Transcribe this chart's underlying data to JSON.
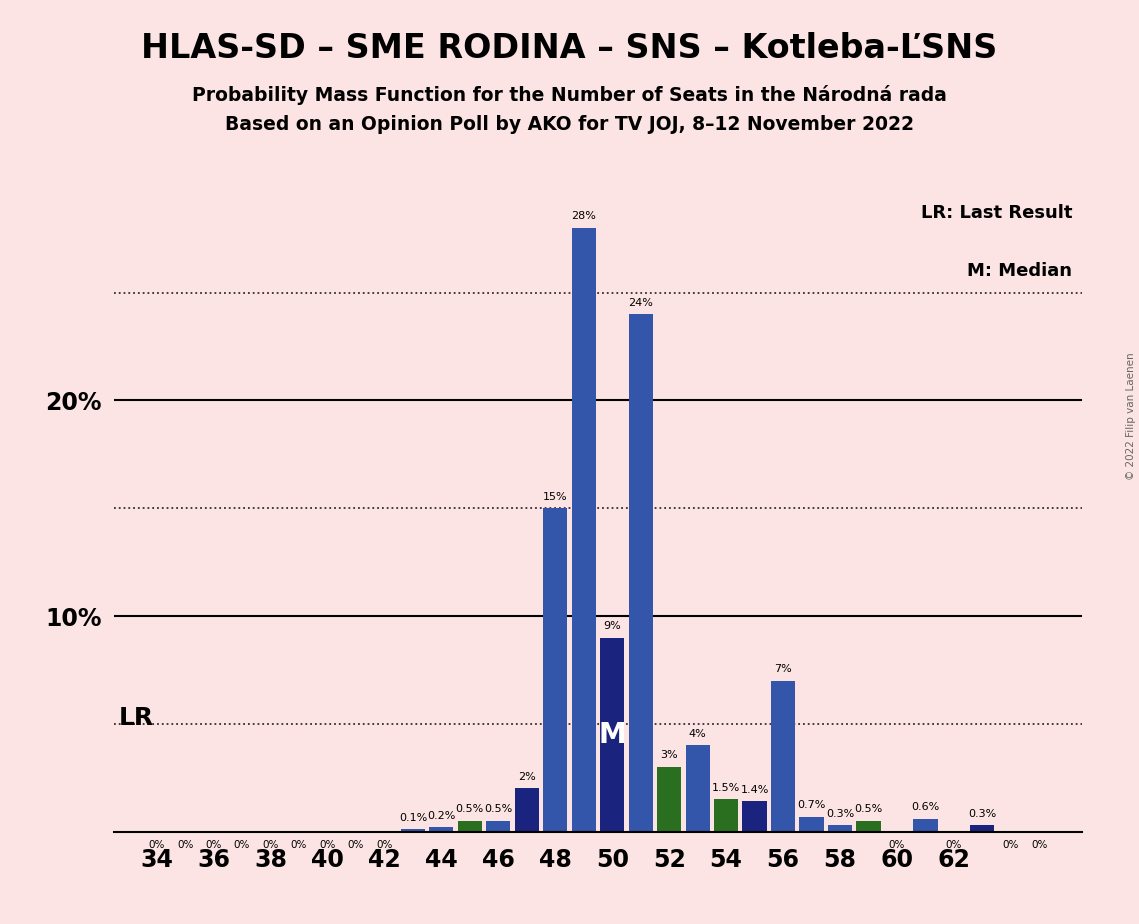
{
  "title_main": "HLAS-SD – SME RODINA – SNS – Kotleba-ĽSNS",
  "title_sub1": "Probability Mass Function for the Number of Seats in the Národná rada",
  "title_sub2": "Based on an Opinion Poll by AKO for TV JOJ, 8–12 November 2022",
  "copyright": "© 2022 Filip van Laenen",
  "background_color": "#fce4e4",
  "seats_bars": [
    [
      34,
      0.0,
      "#3355aa"
    ],
    [
      35,
      0.0,
      "#3355aa"
    ],
    [
      36,
      0.0,
      "#3355aa"
    ],
    [
      37,
      0.0,
      "#3355aa"
    ],
    [
      38,
      0.0,
      "#3355aa"
    ],
    [
      39,
      0.0,
      "#3355aa"
    ],
    [
      40,
      0.0,
      "#3355aa"
    ],
    [
      41,
      0.0,
      "#3355aa"
    ],
    [
      42,
      0.0,
      "#3355aa"
    ],
    [
      43,
      0.1,
      "#3355aa"
    ],
    [
      44,
      0.2,
      "#3355aa"
    ],
    [
      45,
      0.5,
      "#2a6e20"
    ],
    [
      46,
      0.5,
      "#3355aa"
    ],
    [
      47,
      2.0,
      "#1a237e"
    ],
    [
      48,
      15.0,
      "#3355aa"
    ],
    [
      49,
      28.0,
      "#3355aa"
    ],
    [
      50,
      9.0,
      "#1a237e"
    ],
    [
      51,
      24.0,
      "#3355aa"
    ],
    [
      52,
      3.0,
      "#2a6e20"
    ],
    [
      53,
      4.0,
      "#3355aa"
    ],
    [
      54,
      1.5,
      "#2a6e20"
    ],
    [
      55,
      1.4,
      "#1a237e"
    ],
    [
      56,
      7.0,
      "#3355aa"
    ],
    [
      57,
      0.7,
      "#3355aa"
    ],
    [
      58,
      0.3,
      "#3355aa"
    ],
    [
      59,
      0.5,
      "#2a6e20"
    ],
    [
      60,
      0.0,
      "#3355aa"
    ],
    [
      61,
      0.6,
      "#3355aa"
    ],
    [
      62,
      0.0,
      "#3355aa"
    ],
    [
      63,
      0.3,
      "#1a237e"
    ],
    [
      64,
      0.0,
      "#3355aa"
    ],
    [
      65,
      0.0,
      "#3355aa"
    ]
  ],
  "bar_labels": {
    "34": "0%",
    "35": "0%",
    "36": "0%",
    "37": "0%",
    "38": "0%",
    "39": "0%",
    "40": "0%",
    "41": "0%",
    "42": "0%",
    "43": "0.1%",
    "44": "0.2%",
    "45": "0.5%",
    "46": "0.5%",
    "47": "2%",
    "48": "15%",
    "49": "28%",
    "50": "9%",
    "51": "24%",
    "52": "3%",
    "53": "4%",
    "54": "1.5%",
    "55": "1.4%",
    "56": "7%",
    "57": "0.7%",
    "58": "0.3%",
    "59": "0.5%",
    "60": "0%",
    "61": "0.6%",
    "62": "0%",
    "63": "0.3%",
    "64": "0%",
    "65": "0%"
  },
  "LR_seat": 47,
  "median_seat": 50,
  "xtick_seats": [
    34,
    36,
    38,
    40,
    42,
    44,
    46,
    48,
    50,
    52,
    54,
    56,
    58,
    60,
    62
  ],
  "solid_grid": [
    10,
    20
  ],
  "dotted_grid": [
    5,
    15,
    25
  ],
  "ylim": [
    0,
    30
  ],
  "xlim": [
    32.5,
    66.5
  ]
}
